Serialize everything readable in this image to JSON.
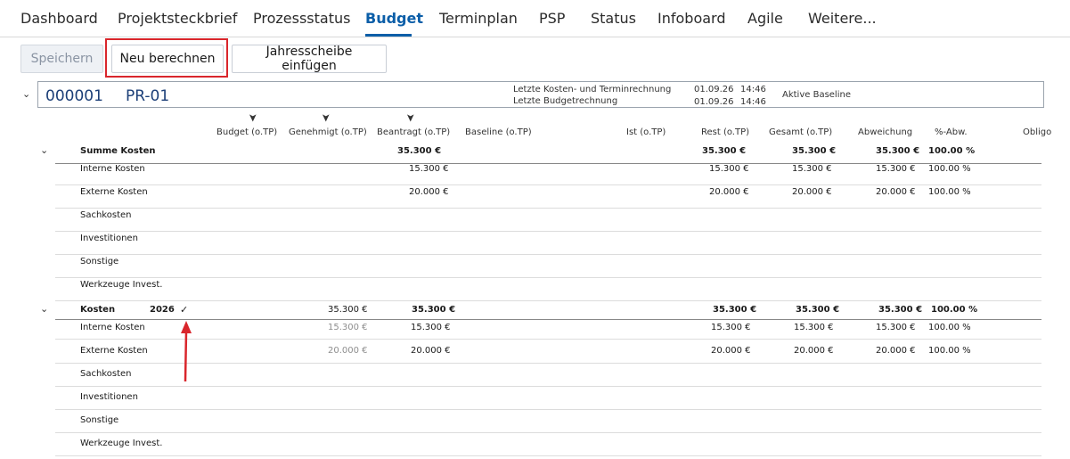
{
  "nav": {
    "tabs": [
      {
        "label": "Dashboard"
      },
      {
        "label": "Projektsteckbrief"
      },
      {
        "label": "Prozessstatus"
      },
      {
        "label": "Budget"
      },
      {
        "label": "Terminplan"
      },
      {
        "label": "PSP"
      },
      {
        "label": "Status"
      },
      {
        "label": "Infoboard"
      },
      {
        "label": "Agile"
      },
      {
        "label": "Weitere..."
      }
    ]
  },
  "toolbar": {
    "save_label": "Speichern",
    "recalc_label": "Neu berechnen",
    "insert_year_label": "Jahresscheibe einfügen"
  },
  "project": {
    "number": "000001",
    "code": "PR-01",
    "last_cost_label": "Letzte Kosten- und Terminrechnung",
    "last_budget_label": "Letzte Budgetrechnung",
    "last_cost_date": "01.09.26",
    "last_cost_time": "14:46",
    "last_budget_date": "01.09.26",
    "last_budget_time": "14:46",
    "baseline_label": "Aktive Baseline"
  },
  "columns": {
    "budget": "Budget (o.TP)",
    "genehmigt": "Genehmigt (o.TP)",
    "beantragt": "Beantragt (o.TP)",
    "baseline": "Baseline (o.TP)",
    "ist": "Ist (o.TP)",
    "rest": "Rest (o.TP)",
    "gesamt": "Gesamt (o.TP)",
    "abweichung": "Abweichung",
    "pct": "%-Abw.",
    "obligo": "Obligo"
  },
  "summe": {
    "title": "Summe Kosten",
    "beantragt": "35.300 €",
    "rest": "35.300 €",
    "gesamt": "35.300 €",
    "abweichung": "35.300 €",
    "pct": "100.00 %",
    "rows": [
      {
        "label": "Interne Kosten",
        "beantragt": "15.300 €",
        "rest": "15.300 €",
        "gesamt": "15.300 €",
        "abweichung": "15.300 €",
        "pct": "100.00 %"
      },
      {
        "label": "Externe Kosten",
        "beantragt": "20.000 €",
        "rest": "20.000 €",
        "gesamt": "20.000 €",
        "abweichung": "20.000 €",
        "pct": "100.00 %"
      },
      {
        "label": "Sachkosten"
      },
      {
        "label": "Investitionen"
      },
      {
        "label": "Sonstige"
      },
      {
        "label": "Werkzeuge Invest."
      }
    ]
  },
  "kosten": {
    "title": "Kosten",
    "year": "2026",
    "check": "✓",
    "genehmigt": "35.300 €",
    "beantragt": "35.300 €",
    "rest": "35.300 €",
    "gesamt": "35.300 €",
    "abweichung": "35.300 €",
    "pct": "100.00 %",
    "rows": [
      {
        "label": "Interne Kosten",
        "genehmigt": "15.300 €",
        "beantragt": "15.300 €",
        "rest": "15.300 €",
        "gesamt": "15.300 €",
        "abweichung": "15.300 €",
        "pct": "100.00 %"
      },
      {
        "label": "Externe Kosten",
        "genehmigt": "20.000 €",
        "beantragt": "20.000 €",
        "rest": "20.000 €",
        "gesamt": "20.000 €",
        "abweichung": "20.000 €",
        "pct": "100.00 %"
      },
      {
        "label": "Sachkosten"
      },
      {
        "label": "Investitionen"
      },
      {
        "label": "Sonstige"
      },
      {
        "label": "Werkzeuge Invest."
      }
    ]
  },
  "colors": {
    "accent": "#0b5ea8",
    "highlight": "#d9262c"
  }
}
